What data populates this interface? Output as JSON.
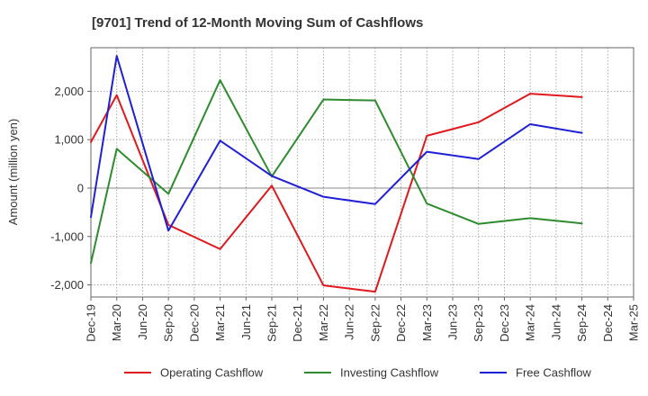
{
  "chart_data": {
    "type": "line",
    "title": "[9701]  Trend of 12-Month Moving Sum of Cashflows",
    "xlabel": "",
    "ylabel": "Amount (million yen)",
    "categories": [
      "Dec-19",
      "Mar-20",
      "Jun-20",
      "Sep-20",
      "Dec-20",
      "Mar-21",
      "Jun-21",
      "Sep-21",
      "Dec-21",
      "Mar-22",
      "Jun-22",
      "Sep-22",
      "Dec-22",
      "Mar-23",
      "Jun-23",
      "Sep-23",
      "Dec-23",
      "Mar-24",
      "Jun-24",
      "Sep-24",
      "Dec-24",
      "Mar-25"
    ],
    "ylim": [
      -2250,
      2900
    ],
    "yticks": [
      -2000,
      -1000,
      0,
      1000,
      2000
    ],
    "ytick_labels": [
      "-2,000",
      "-1,000",
      "0",
      "1,000",
      "2,000"
    ],
    "grid": true,
    "legend_position": "bottom",
    "series": [
      {
        "name": "Operating Cashflow",
        "color": "#e0191e",
        "values": [
          950,
          1920,
          null,
          -760,
          null,
          -1260,
          null,
          50,
          null,
          -2010,
          null,
          -2140,
          null,
          1080,
          null,
          1360,
          null,
          1950,
          null,
          1880,
          null,
          null
        ]
      },
      {
        "name": "Investing Cashflow",
        "color": "#2e8b2e",
        "values": [
          -1550,
          810,
          null,
          -120,
          null,
          2230,
          null,
          240,
          null,
          1830,
          null,
          1810,
          null,
          -320,
          null,
          -740,
          null,
          -620,
          null,
          -730,
          null,
          null
        ]
      },
      {
        "name": "Free Cashflow",
        "color": "#1f1fd6",
        "values": [
          -600,
          2730,
          null,
          -880,
          null,
          980,
          null,
          250,
          null,
          -180,
          null,
          -330,
          null,
          750,
          null,
          600,
          null,
          1320,
          null,
          1140,
          null,
          null
        ]
      }
    ]
  }
}
